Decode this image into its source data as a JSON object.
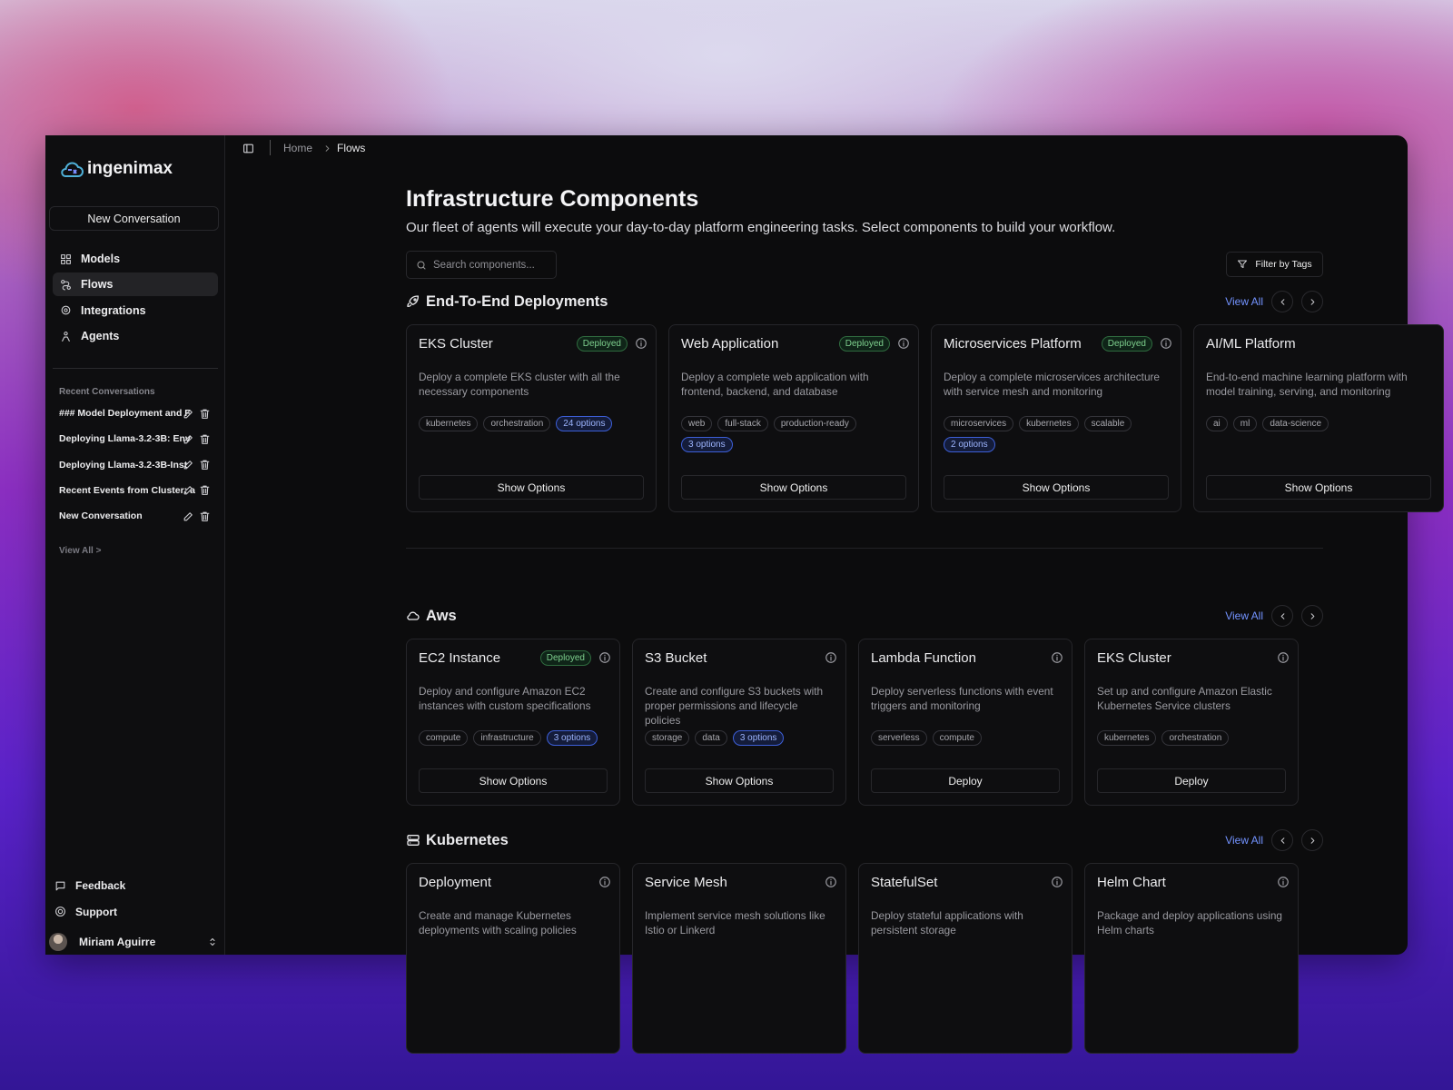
{
  "brand": {
    "name": "ingenimax"
  },
  "sidebar": {
    "new_conversation": "New Conversation",
    "nav": [
      {
        "label": "Models"
      },
      {
        "label": "Flows",
        "active": true
      },
      {
        "label": "Integrations"
      },
      {
        "label": "Agents"
      }
    ],
    "recent_title": "Recent Conversations",
    "recent": [
      "### Model Deployment and F",
      "Deploying Llama-3.2-3B: Env",
      "Deploying Llama-3.2-3B-Inst",
      "Recent Events from Cluster: a",
      "New Conversation"
    ],
    "view_all": "View All >",
    "footer": [
      "Feedback",
      "Support"
    ],
    "user": "Miriam Aguirre"
  },
  "breadcrumb": [
    "Home",
    "Flows"
  ],
  "header": {
    "title": "Infrastructure Components",
    "subtitle": "Our fleet of agents will execute your day-to-day platform engineering tasks. Select components to build your workflow.",
    "search_placeholder": "Search components...",
    "filter": "Filter by Tags"
  },
  "sections": [
    {
      "title": "End-To-End Deployments",
      "view_all": "View All",
      "cards": [
        {
          "title": "EKS Cluster",
          "status": "Deployed",
          "description": "Deploy a complete EKS cluster with all the necessary components",
          "tags": [
            "kubernetes",
            "orchestration"
          ],
          "options": "24 options",
          "button": "Show Options"
        },
        {
          "title": "Web Application",
          "status": "Deployed",
          "description": "Deploy a complete web application with frontend, backend, and database",
          "tags": [
            "web",
            "full-stack",
            "production-ready"
          ],
          "options": "3 options",
          "button": "Show Options"
        },
        {
          "title": "Microservices Platform",
          "status": "Deployed",
          "description": "Deploy a complete microservices architecture with service mesh and monitoring",
          "tags": [
            "microservices",
            "kubernetes",
            "scalable"
          ],
          "options": "2 options",
          "button": "Show Options"
        },
        {
          "title": "AI/ML Platform",
          "description": "End-to-end machine learning platform with model training, serving, and monitoring",
          "tags": [
            "ai",
            "ml",
            "data-science"
          ],
          "button": "Show Options"
        }
      ]
    },
    {
      "title": "Aws",
      "view_all": "View All",
      "cards": [
        {
          "title": "EC2 Instance",
          "status": "Deployed",
          "description": "Deploy and configure Amazon EC2 instances with custom specifications",
          "tags": [
            "compute",
            "infrastructure"
          ],
          "options": "3 options",
          "button": "Show Options"
        },
        {
          "title": "S3 Bucket",
          "description": "Create and configure S3 buckets with proper permissions and lifecycle policies",
          "tags": [
            "storage",
            "data"
          ],
          "options": "3 options",
          "button": "Show Options"
        },
        {
          "title": "Lambda Function",
          "description": "Deploy serverless functions with event triggers and monitoring",
          "tags": [
            "serverless",
            "compute"
          ],
          "button": "Deploy"
        },
        {
          "title": "EKS Cluster",
          "description": "Set up and configure Amazon Elastic Kubernetes Service clusters",
          "tags": [
            "kubernetes",
            "orchestration"
          ],
          "button": "Deploy"
        }
      ]
    },
    {
      "title": "Kubernetes",
      "view_all": "View All",
      "cards": [
        {
          "title": "Deployment",
          "description": "Create and manage Kubernetes deployments with scaling policies"
        },
        {
          "title": "Service Mesh",
          "description": "Implement service mesh solutions like Istio or Linkerd"
        },
        {
          "title": "StatefulSet",
          "description": "Deploy stateful applications with persistent storage"
        },
        {
          "title": "Helm Chart",
          "description": "Package and deploy applications using Helm charts"
        }
      ]
    }
  ]
}
